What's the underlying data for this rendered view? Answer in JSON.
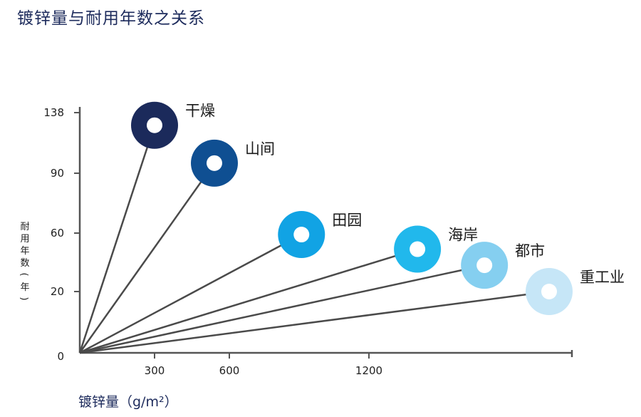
{
  "page": {
    "title": "镀锌量与耐用年数之关系"
  },
  "chart_data": {
    "type": "line",
    "title": "镀锌量与耐用年数之关系",
    "xlabel": "镀锌量（g/m²）",
    "ylabel": "耐用年数（年）",
    "x_ticks": [
      "300",
      "600",
      "1200"
    ],
    "y_ticks": [
      "138",
      "90",
      "60",
      "20",
      "0"
    ],
    "series": [
      {
        "name": "干燥",
        "x": [
          0,
          300
        ],
        "y": [
          0,
          128
        ],
        "color": "#1b2a5b"
      },
      {
        "name": "山间",
        "x": [
          0,
          540
        ],
        "y": [
          0,
          98
        ],
        "color": "#0f4f92"
      },
      {
        "name": "田园",
        "x": [
          0,
          910
        ],
        "y": [
          0,
          59
        ],
        "color": "#11a3e4"
      },
      {
        "name": "海岸",
        "x": [
          0,
          1410
        ],
        "y": [
          0,
          49
        ],
        "color": "#21b8ec"
      },
      {
        "name": "都市",
        "x": [
          0,
          1700
        ],
        "y": [
          0,
          38
        ],
        "color": "#85cff0"
      },
      {
        "name": "重工业",
        "x": [
          0,
          1980
        ],
        "y": [
          0,
          20
        ],
        "color": "#c6e6f7"
      }
    ]
  }
}
